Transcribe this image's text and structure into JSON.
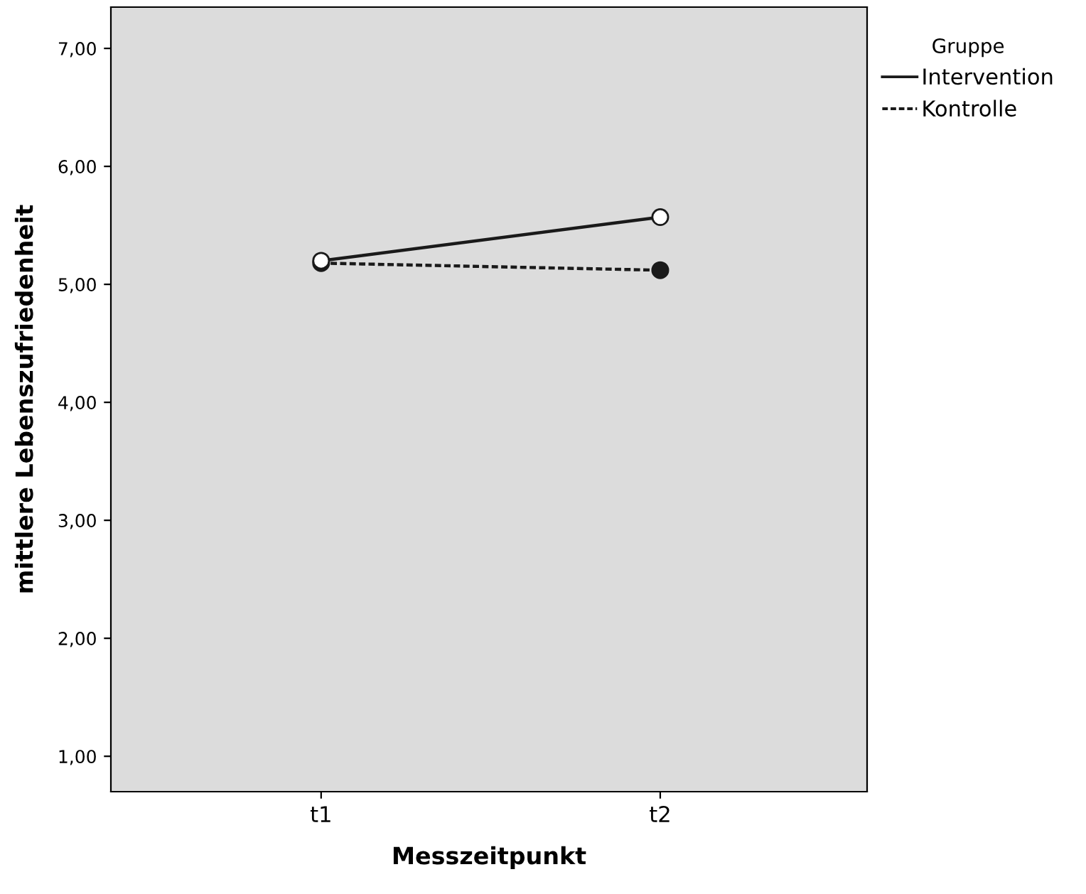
{
  "chart_data": {
    "type": "line",
    "xlabel": "Messzeitpunkt",
    "ylabel": "mittlere Lebenszufriedenheit",
    "legend_title": "Gruppe",
    "categories": [
      "t1",
      "t2"
    ],
    "series": [
      {
        "name": "Intervention",
        "color": "#1a1a1a",
        "values": [
          5.2,
          5.57
        ],
        "line_style": "solid"
      },
      {
        "name": "Kontrolle",
        "color": "#1a1a1a",
        "values": [
          5.18,
          5.12
        ],
        "line_style": "dashed"
      }
    ],
    "ylim": [
      0.7,
      7.35
    ],
    "yticks": [
      {
        "value": 1,
        "label": "1,00"
      },
      {
        "value": 2,
        "label": "2,00"
      },
      {
        "value": 3,
        "label": "3,00"
      },
      {
        "value": 4,
        "label": "4,00"
      },
      {
        "value": 5,
        "label": "5,00"
      },
      {
        "value": 6,
        "label": "6,00"
      },
      {
        "value": 7,
        "label": "7,00"
      }
    ],
    "grid": false,
    "legend": "top right",
    "marker": "circle"
  }
}
